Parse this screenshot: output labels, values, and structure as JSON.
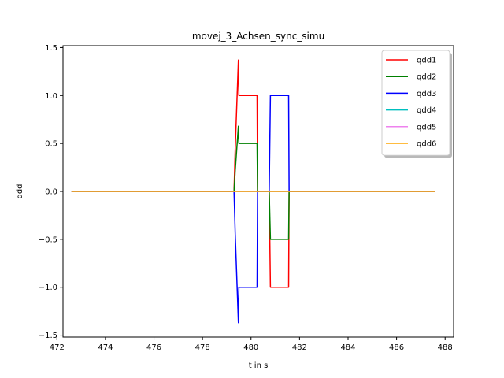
{
  "chart_data": {
    "type": "line",
    "title": "movej_3_Achsen_sync_simu",
    "xlabel": "t in s",
    "ylabel": "qdd",
    "xlim": [
      472.25,
      488.35
    ],
    "ylim": [
      -1.52,
      1.52
    ],
    "xticks": [
      472,
      474,
      476,
      478,
      480,
      482,
      484,
      486,
      488
    ],
    "yticks": [
      -1.5,
      -1.0,
      -0.5,
      0.0,
      0.5,
      1.0,
      1.5
    ],
    "xtick_labels": [
      "472",
      "474",
      "476",
      "478",
      "480",
      "482",
      "484",
      "486",
      "488"
    ],
    "ytick_labels": [
      "−1.5",
      "−1.0",
      "−0.5",
      "0.0",
      "0.5",
      "1.0",
      "1.5"
    ],
    "grid": false,
    "legend_position": "top-right",
    "series": [
      {
        "name": "qdd1",
        "color": "#ff0000",
        "x": [
          472.6,
          479.3,
          479.35,
          479.48,
          479.5,
          479.55,
          480.25,
          480.27,
          480.75,
          480.8,
          481.55,
          481.57,
          487.6
        ],
        "y": [
          0,
          0,
          0.45,
          1.37,
          1.0,
          1.0,
          1.0,
          0,
          0,
          -1.0,
          -1.0,
          0,
          0
        ]
      },
      {
        "name": "qdd2",
        "color": "#008000",
        "x": [
          472.6,
          479.3,
          479.35,
          479.48,
          479.5,
          479.55,
          480.25,
          480.27,
          480.75,
          480.8,
          481.55,
          481.57,
          487.6
        ],
        "y": [
          0,
          0,
          0.22,
          0.68,
          0.5,
          0.5,
          0.5,
          0,
          0,
          -0.5,
          -0.5,
          0,
          0
        ]
      },
      {
        "name": "qdd3",
        "color": "#0000ff",
        "x": [
          472.6,
          479.3,
          479.35,
          479.48,
          479.5,
          479.55,
          480.25,
          480.27,
          480.75,
          480.8,
          481.55,
          481.57,
          487.6
        ],
        "y": [
          0,
          0,
          -0.45,
          -1.37,
          -1.0,
          -1.0,
          -1.0,
          0,
          0,
          1.0,
          1.0,
          0,
          0
        ]
      },
      {
        "name": "qdd4",
        "color": "#00bfbf",
        "x": [
          472.6,
          487.6
        ],
        "y": [
          0,
          0
        ]
      },
      {
        "name": "qdd5",
        "color": "#ee82ee",
        "x": [
          472.6,
          487.6
        ],
        "y": [
          0,
          0
        ]
      },
      {
        "name": "qdd6",
        "color": "#ffa500",
        "x": [
          472.6,
          487.6
        ],
        "y": [
          0,
          0
        ]
      }
    ]
  }
}
